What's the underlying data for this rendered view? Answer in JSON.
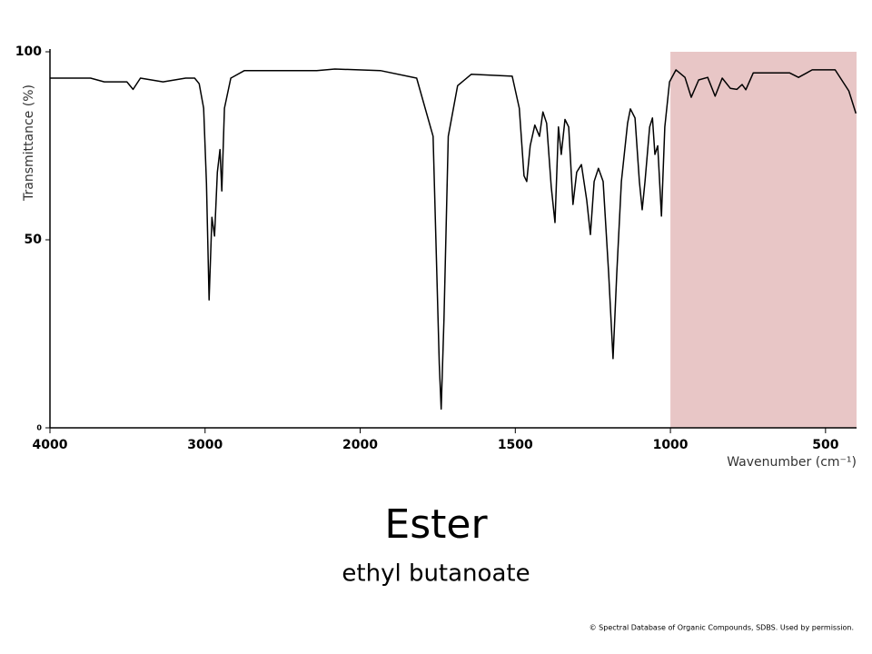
{
  "chart_data": {
    "type": "line",
    "title": "Ester",
    "subtitle": "ethyl butanoate",
    "credit": "© Spectral Database of Organic Compounds, SDBS. Used by permission.",
    "x_label": "Wavenumber (cm⁻¹)",
    "y_label": "Transmittance (%)",
    "xlim": [
      4000,
      400
    ],
    "xticks": [
      4000,
      3000,
      2000,
      1500,
      1000,
      500
    ],
    "ylim": [
      0,
      100
    ],
    "yticks": [
      0,
      50,
      100
    ],
    "shaded_region": {
      "xlim": [
        1000,
        400
      ],
      "color": "#e8c6c6"
    },
    "series": [
      {
        "color": "#000000",
        "x": [
          4000,
          3738,
          3650,
          3504,
          3464,
          3417,
          3271,
          3125,
          3067,
          3038,
          3009,
          2991,
          2974,
          2956,
          2939,
          2921,
          2904,
          2892,
          2875,
          2834,
          2746,
          2280,
          2163,
          1935,
          1818,
          1765,
          1745,
          1739,
          1730,
          1716,
          1686,
          1642,
          1510,
          1487,
          1472,
          1463,
          1452,
          1437,
          1422,
          1411,
          1399,
          1384,
          1372,
          1361,
          1352,
          1340,
          1328,
          1314,
          1302,
          1287,
          1270,
          1258,
          1246,
          1232,
          1217,
          1199,
          1185,
          1173,
          1158,
          1138,
          1129,
          1114,
          1100,
          1091,
          1082,
          1067,
          1058,
          1050,
          1041,
          1029,
          1018,
          1003,
          982,
          953,
          933,
          909,
          880,
          856,
          833,
          807,
          786,
          769,
          757,
          733,
          616,
          587,
          543,
          469,
          425,
          402
        ],
        "values": [
          93,
          93,
          92,
          92,
          90,
          93,
          92,
          93,
          93,
          91.5,
          85,
          65,
          34,
          56,
          51,
          68,
          74,
          63,
          85,
          93,
          95,
          95,
          95.4,
          95,
          93,
          77.5,
          17,
          5,
          29,
          77.5,
          91,
          94,
          93.5,
          85,
          67,
          65.5,
          75,
          80.5,
          77.5,
          84,
          81,
          64,
          54.6,
          80,
          72.7,
          82,
          80,
          59.4,
          68,
          70,
          60.6,
          51.4,
          65.5,
          69,
          65.5,
          41,
          18.4,
          41,
          65.5,
          81,
          84.8,
          82.4,
          65.5,
          58,
          65.5,
          80,
          82.4,
          72.7,
          75,
          56.3,
          80,
          92,
          95.2,
          93.2,
          87.9,
          92.5,
          93.2,
          88.2,
          93,
          90.3,
          90,
          91.3,
          89.9,
          94.4,
          94.4,
          93.2,
          95.2,
          95.2,
          89.6,
          83.6
        ]
      }
    ]
  }
}
